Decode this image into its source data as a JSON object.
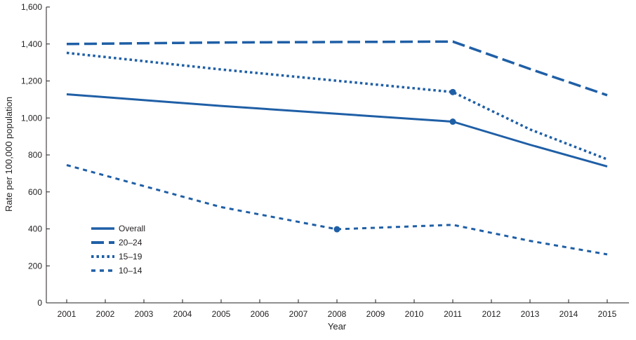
{
  "chart_data": {
    "type": "line",
    "xlabel": "Year",
    "ylabel": "Rate per 100,000 population",
    "x": [
      2001,
      2002,
      2003,
      2004,
      2005,
      2006,
      2007,
      2008,
      2009,
      2010,
      2011,
      2012,
      2013,
      2014,
      2015
    ],
    "x_tick_labels": [
      "2001",
      "2002",
      "2003",
      "2004",
      "2005",
      "2006",
      "2007",
      "2008",
      "2009",
      "2010",
      "2011",
      "2012",
      "2013",
      "2014",
      "2015"
    ],
    "ylim": [
      0,
      1600
    ],
    "y_ticks": [
      0,
      200,
      400,
      600,
      800,
      1000,
      1200,
      1400,
      1600
    ],
    "y_tick_labels": [
      "0",
      "200",
      "400",
      "600",
      "800",
      "1,000",
      "1,200",
      "1,400",
      "1,600"
    ],
    "grid": false,
    "legend_position": "bottom-left",
    "series": [
      {
        "name": "Overall",
        "style": "solid",
        "color": "#1f5fa6",
        "points": [
          [
            2001,
            1128
          ],
          [
            2005,
            1065
          ],
          [
            2011,
            980
          ],
          [
            2013,
            855
          ],
          [
            2015,
            738
          ]
        ],
        "markers": [
          [
            2011,
            980
          ]
        ]
      },
      {
        "name": "20–24",
        "style": "long-dash",
        "color": "#1f5fa6",
        "points": [
          [
            2001,
            1400
          ],
          [
            2005,
            1408
          ],
          [
            2011,
            1413
          ],
          [
            2013,
            1265
          ],
          [
            2015,
            1123
          ]
        ],
        "markers": []
      },
      {
        "name": "15–19",
        "style": "dotted",
        "color": "#1f5fa6",
        "points": [
          [
            2001,
            1352
          ],
          [
            2005,
            1262
          ],
          [
            2011,
            1140
          ],
          [
            2013,
            938
          ],
          [
            2015,
            776
          ]
        ],
        "markers": [
          [
            2011,
            1140
          ]
        ]
      },
      {
        "name": "10–14",
        "style": "short-dash",
        "color": "#1f5fa6",
        "points": [
          [
            2001,
            745
          ],
          [
            2005,
            518
          ],
          [
            2008,
            398
          ],
          [
            2011,
            422
          ],
          [
            2013,
            335
          ],
          [
            2015,
            262
          ]
        ],
        "markers": [
          [
            2008,
            398
          ]
        ]
      }
    ]
  }
}
